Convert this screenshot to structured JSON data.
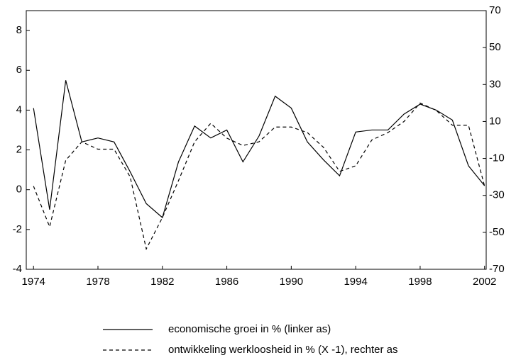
{
  "chart_data": {
    "type": "line",
    "x": [
      1974,
      1975,
      1976,
      1977,
      1978,
      1979,
      1980,
      1981,
      1982,
      1983,
      1984,
      1985,
      1986,
      1987,
      1988,
      1989,
      1990,
      1991,
      1992,
      1993,
      1994,
      1995,
      1996,
      1997,
      1998,
      1999,
      2000,
      2001,
      2002
    ],
    "series": [
      {
        "name": "economische groei in % (linker as)",
        "color": "#000000",
        "dash": "solid",
        "values": [
          4.1,
          -1.0,
          5.5,
          2.4,
          2.6,
          2.4,
          0.9,
          -0.7,
          -1.4,
          1.4,
          3.2,
          2.6,
          3.0,
          1.4,
          2.7,
          4.7,
          4.1,
          2.4,
          1.5,
          0.7,
          2.9,
          3.0,
          3.0,
          3.8,
          4.3,
          4.0,
          3.5,
          1.2,
          0.2
        ]
      },
      {
        "name": "ontwikkeling werkloosheid in % (X -1), rechter as",
        "color": "#000000",
        "dash": "dashed",
        "axis": "y2",
        "values": [
          -25,
          -47,
          -11,
          -1,
          -5,
          -5,
          -20,
          -59,
          -42,
          -22,
          -1,
          9,
          1,
          -3,
          -1,
          7,
          7,
          4,
          -4,
          -17,
          -14,
          0,
          4,
          10,
          20,
          16,
          8,
          8,
          -25
        ]
      }
    ],
    "xlim": [
      1973.55,
      2002.1
    ],
    "xticks": [
      1974,
      1978,
      1982,
      1986,
      1990,
      1994,
      1998,
      2002
    ],
    "ylim": [
      -4,
      9
    ],
    "yticks": [
      -4,
      -2,
      0,
      2,
      4,
      6,
      8
    ],
    "y2lim": [
      -70,
      70
    ],
    "y2ticks": [
      -70,
      -50,
      -30,
      -10,
      10,
      30,
      50,
      70
    ],
    "legend": "bottom"
  }
}
